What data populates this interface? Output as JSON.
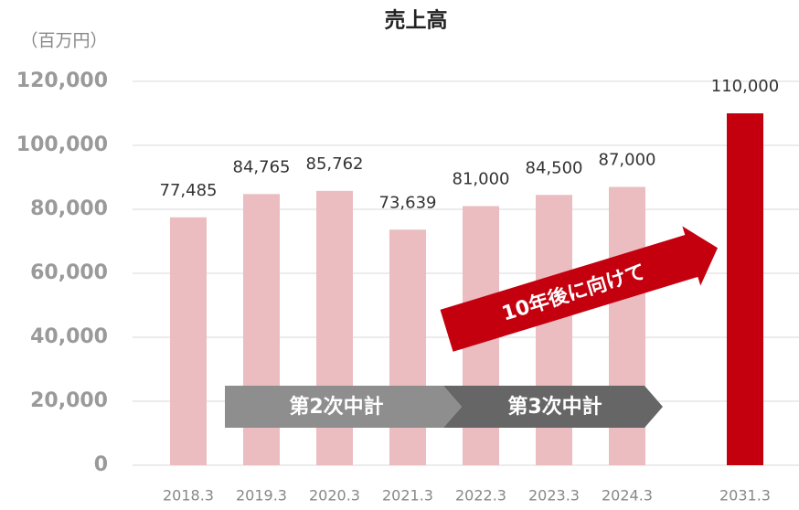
{
  "chart_data": {
    "type": "bar",
    "title": "売上高",
    "y_unit": "（百万円）",
    "categories": [
      "2018.3",
      "2019.3",
      "2020.3",
      "2021.3",
      "2022.3",
      "2023.3",
      "2024.3",
      "2031.3"
    ],
    "values": [
      77485,
      84765,
      85762,
      73639,
      81000,
      84500,
      87000,
      110000
    ],
    "value_labels": [
      "77,485",
      "84,765",
      "85,762",
      "73,639",
      "81,000",
      "84,500",
      "87,000",
      "110,000"
    ],
    "colors": [
      "#ebbcc0",
      "#ebbcc0",
      "#ebbcc0",
      "#ebbcc0",
      "#ebbcc0",
      "#ebbcc0",
      "#ebbcc0",
      "#c4000f"
    ],
    "ylim": [
      0,
      120000
    ],
    "yticks": [
      0,
      {
        "value": 20000,
        "label": "20,000"
      },
      {
        "value": 40000,
        "label": "40,000"
      },
      {
        "value": 60000,
        "label": "60,000"
      },
      {
        "value": 80000,
        "label": "80,000"
      },
      {
        "value": 100000,
        "label": "100,000"
      },
      {
        "value": 120000,
        "label": "120,000"
      }
    ],
    "grid": true,
    "annotations": [
      "第2次中計",
      "第3次中計",
      "10年後に向けて"
    ]
  }
}
